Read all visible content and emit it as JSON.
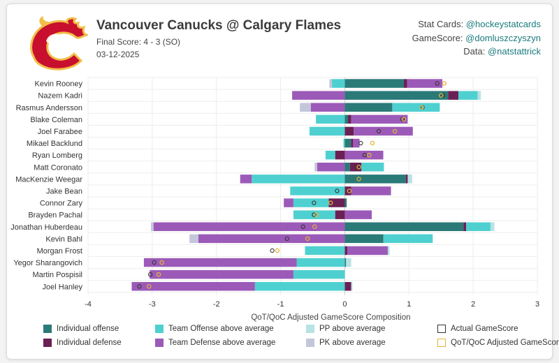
{
  "header": {
    "title": "Vancouver Canucks @ Calgary Flames",
    "final_score": "Final Score: 4 - 3 (SO)",
    "date": "03-12-2025"
  },
  "credits": [
    {
      "label": "Stat Cards: ",
      "handle": "@hockeystatcards"
    },
    {
      "label": "GameScore: ",
      "handle": "@domluszczyszyn"
    },
    {
      "label": "Data: ",
      "handle": "@natstattrick"
    }
  ],
  "colors": {
    "individual_offense": "#2a7a78",
    "individual_defense": "#6b2054",
    "team_offense": "#4fd0d0",
    "team_defense": "#9c5ab8",
    "pp": "#b8e2e4",
    "pk": "#c4c6da",
    "actual_marker": "#333333",
    "adjusted_marker": "#e4b43a"
  },
  "legend": [
    {
      "key": "individual_offense",
      "label": "Individual offense",
      "type": "fill"
    },
    {
      "key": "team_offense",
      "label": "Team Offense above average",
      "type": "fill"
    },
    {
      "key": "pp",
      "label": "PP above average",
      "type": "fill"
    },
    {
      "key": "actual_marker",
      "label": "Actual GameScore",
      "type": "outline"
    },
    {
      "key": "individual_defense",
      "label": "Individual defense",
      "type": "fill"
    },
    {
      "key": "team_defense",
      "label": "Team Defense above average",
      "type": "fill"
    },
    {
      "key": "pk",
      "label": "PK above average",
      "type": "fill"
    },
    {
      "key": "adjusted_marker",
      "label": "QoT/QoC Adjusted GameScore",
      "type": "outline"
    }
  ],
  "chart_data": {
    "type": "bar",
    "orientation": "horizontal",
    "stacked": "diverging",
    "xlabel": "QoT/QoC Adjusted GameScore Composition",
    "xlim": [
      -4,
      3
    ],
    "xticks": [
      -4,
      -3,
      -2,
      -1,
      0,
      1,
      2,
      3
    ],
    "grid": true,
    "legend_position": "bottom",
    "categories": [
      "Kevin Rooney",
      "Nazem Kadri",
      "Rasmus Andersson",
      "Blake Coleman",
      "Joel Farabee",
      "Mikael Backlund",
      "Ryan Lomberg",
      "Matt Coronato",
      "MacKenzie Weegar",
      "Jake Bean",
      "Connor Zary",
      "Brayden Pachal",
      "Jonathan Huberdeau",
      "Kevin Bahl",
      "Morgan Frost",
      "Yegor Sharangovich",
      "Martin Pospisil",
      "Joel Hanley"
    ],
    "series": [
      {
        "name": "Individual offense",
        "key": "individual_offense",
        "values": [
          0.92,
          1.61,
          0.74,
          0.05,
          0.0,
          0.1,
          0.0,
          0.08,
          0.95,
          0.0,
          0.03,
          0.0,
          1.85,
          0.6,
          0.0,
          0.02,
          0.0,
          0.0
        ]
      },
      {
        "name": "Individual defense",
        "key": "individual_defense",
        "values": [
          0.05,
          0.16,
          0.0,
          0.05,
          0.14,
          0.03,
          -0.15,
          0.18,
          0.03,
          0.1,
          -0.25,
          -0.15,
          0.04,
          0.0,
          0.04,
          0.0,
          0.0,
          0.1
        ]
      },
      {
        "name": "Team Offense above average",
        "key": "team_offense",
        "values": [
          -0.2,
          0.3,
          0.74,
          -0.45,
          -0.55,
          -0.02,
          -0.15,
          0.35,
          -1.45,
          -0.85,
          -0.55,
          -0.65,
          0.38,
          0.77,
          -0.62,
          -0.75,
          -0.8,
          -1.4
        ]
      },
      {
        "name": "Team Defense above average",
        "key": "team_defense",
        "values": [
          0.55,
          -0.82,
          -0.53,
          0.88,
          0.92,
          0.1,
          0.6,
          -0.43,
          -0.18,
          0.62,
          -0.15,
          0.42,
          -2.98,
          -2.28,
          0.63,
          -2.38,
          -2.24,
          -1.92
        ]
      },
      {
        "name": "PP above average",
        "key": "pp",
        "values": [
          0.0,
          0.05,
          0.0,
          0.0,
          0.0,
          0.0,
          0.0,
          0.0,
          0.07,
          0.0,
          0.0,
          0.0,
          0.06,
          0.0,
          0.03,
          0.08,
          0.0,
          0.02
        ]
      },
      {
        "name": "PK above average",
        "key": "pk",
        "values": [
          -0.04,
          0.0,
          -0.17,
          0.0,
          0.0,
          0.0,
          0.0,
          -0.04,
          0.0,
          0.0,
          0.0,
          0.0,
          -0.04,
          -0.14,
          0.0,
          0.0,
          0.0,
          0.0
        ]
      }
    ],
    "actual_gamescore": [
      1.44,
      1.53,
      1.21,
      0.9,
      0.53,
      0.25,
      0.31,
      0.2,
      0.22,
      -0.12,
      -0.48,
      -0.48,
      -0.65,
      -0.9,
      -1.13,
      -2.97,
      -3.03,
      -3.2
    ],
    "adjusted_gamescore": [
      1.55,
      1.5,
      1.2,
      0.92,
      0.78,
      0.43,
      0.38,
      0.22,
      0.22,
      0.07,
      -0.22,
      -0.44,
      -0.47,
      -0.58,
      -1.05,
      -2.85,
      -2.9,
      -3.05
    ]
  }
}
